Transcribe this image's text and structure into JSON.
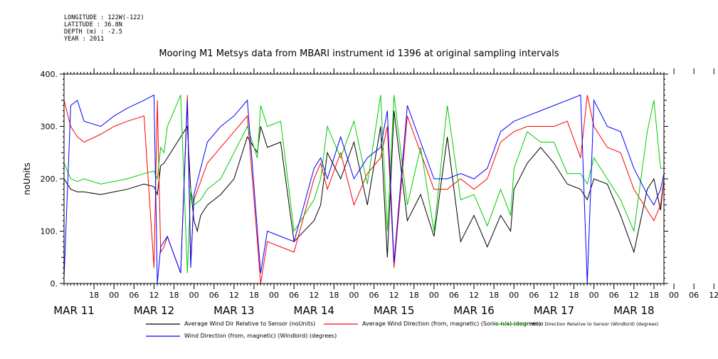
{
  "meta": {
    "longitude": "LONGITUDE : 122W(-122)",
    "latitude": "LATITUDE : 36.8N",
    "depth": "DEPTH (m) : -2.5",
    "year": "YEAR : 2011"
  },
  "chart_data": {
    "type": "line",
    "title": "Mooring M1 Metsys data from MBARI instrument id 1396 at original sampling intervals",
    "ylabel": "noUnits",
    "xlabel": "",
    "ylim": [
      0,
      400
    ],
    "yticks": [
      0,
      100,
      200,
      300,
      400
    ],
    "xlim_hours_from_mar11_00": [
      9,
      189
    ],
    "hour_tick_labels": [
      "18",
      "00",
      "06",
      "12",
      "18",
      "00",
      "06",
      "12",
      "18",
      "00",
      "06",
      "12",
      "18",
      "00",
      "06",
      "12",
      "18",
      "00",
      "06",
      "12",
      "18",
      "00",
      "06",
      "12",
      "18",
      "00",
      "06",
      "12",
      "18",
      "00",
      "06",
      "12"
    ],
    "day_labels": [
      "MAR 11",
      "MAR 12",
      "MAR 13",
      "MAR 14",
      "MAR 15",
      "MAR 16",
      "MAR 17",
      "MAR 18"
    ],
    "grid": false,
    "legend_position": "bottom",
    "series": [
      {
        "name": "Average Wind Dir Relative to Sensor (noUnits)",
        "color": "#000000",
        "x": [
          9,
          11,
          13,
          15,
          20,
          24,
          28,
          33,
          36,
          37,
          38,
          39,
          40,
          44,
          46,
          47,
          48,
          49,
          50,
          52,
          56,
          60,
          64,
          67,
          68,
          70,
          74,
          78,
          84,
          86,
          88,
          92,
          96,
          100,
          104,
          106,
          108,
          112,
          116,
          120,
          124,
          128,
          132,
          136,
          140,
          143,
          144,
          148,
          152,
          156,
          160,
          164,
          166,
          168,
          172,
          176,
          180,
          184,
          186,
          188,
          189
        ],
        "y": [
          200,
          180,
          175,
          175,
          170,
          175,
          180,
          190,
          185,
          170,
          225,
          230,
          240,
          280,
          300,
          180,
          120,
          100,
          130,
          150,
          170,
          200,
          280,
          250,
          300,
          260,
          270,
          80,
          120,
          150,
          250,
          200,
          270,
          150,
          300,
          50,
          330,
          120,
          170,
          90,
          280,
          80,
          130,
          70,
          130,
          100,
          180,
          230,
          260,
          230,
          190,
          180,
          160,
          200,
          190,
          130,
          60,
          180,
          200,
          140,
          200
        ]
      },
      {
        "name": "Average Wind Direction (from, magnetic) (Sonic-n/a) (degrees)",
        "color": "#ff0000",
        "x": [
          9,
          11,
          13,
          15,
          20,
          24,
          28,
          33,
          36,
          37,
          38,
          39,
          40,
          44,
          46,
          47,
          48,
          52,
          56,
          60,
          64,
          68,
          70,
          74,
          78,
          84,
          86,
          88,
          92,
          96,
          100,
          104,
          106,
          108,
          112,
          116,
          120,
          124,
          128,
          132,
          136,
          140,
          144,
          148,
          152,
          156,
          160,
          164,
          166,
          168,
          172,
          176,
          180,
          184,
          186,
          188,
          189
        ],
        "y": [
          350,
          300,
          280,
          270,
          285,
          300,
          310,
          320,
          30,
          350,
          60,
          70,
          90,
          20,
          360,
          40,
          160,
          230,
          260,
          290,
          320,
          0,
          80,
          70,
          60,
          200,
          230,
          180,
          250,
          150,
          210,
          240,
          300,
          30,
          320,
          250,
          180,
          180,
          200,
          180,
          200,
          270,
          290,
          300,
          300,
          300,
          310,
          240,
          360,
          300,
          260,
          250,
          180,
          140,
          120,
          150,
          200
        ]
      },
      {
        "name": "Wind Direction Relative to Sensor (Windbird) (degrees)",
        "color": "#00cc00",
        "x": [
          9,
          11,
          13,
          15,
          20,
          24,
          28,
          33,
          36,
          37,
          38,
          39,
          40,
          44,
          46,
          47,
          48,
          50,
          52,
          56,
          60,
          64,
          67,
          68,
          70,
          74,
          78,
          84,
          86,
          88,
          92,
          96,
          100,
          104,
          106,
          108,
          112,
          116,
          120,
          124,
          128,
          132,
          136,
          140,
          143,
          144,
          148,
          152,
          156,
          160,
          164,
          166,
          168,
          172,
          176,
          180,
          184,
          186,
          188,
          189
        ],
        "y": [
          230,
          200,
          195,
          200,
          190,
          195,
          200,
          210,
          215,
          200,
          260,
          250,
          300,
          360,
          20,
          180,
          150,
          160,
          180,
          200,
          250,
          300,
          240,
          340,
          300,
          310,
          100,
          160,
          200,
          300,
          240,
          310,
          190,
          360,
          100,
          360,
          150,
          260,
          100,
          340,
          160,
          170,
          110,
          180,
          130,
          220,
          290,
          270,
          270,
          210,
          210,
          190,
          240,
          200,
          160,
          100,
          290,
          350,
          220,
          220
        ]
      },
      {
        "name": "Wind Direction (from, magnetic) (Windbird) (degrees)",
        "color": "#0000ff",
        "x": [
          9,
          11,
          13,
          15,
          20,
          24,
          28,
          33,
          36,
          37,
          38,
          39,
          40,
          44,
          46,
          47,
          48,
          52,
          56,
          60,
          64,
          68,
          70,
          74,
          78,
          84,
          86,
          88,
          92,
          96,
          100,
          104,
          106,
          108,
          112,
          116,
          120,
          124,
          128,
          132,
          136,
          140,
          144,
          148,
          152,
          156,
          160,
          164,
          166,
          168,
          172,
          176,
          180,
          184,
          186,
          188,
          189
        ],
        "y": [
          10,
          340,
          350,
          310,
          300,
          320,
          335,
          350,
          360,
          0,
          70,
          80,
          90,
          20,
          350,
          30,
          170,
          270,
          300,
          320,
          350,
          20,
          100,
          90,
          80,
          220,
          240,
          200,
          280,
          200,
          240,
          260,
          330,
          40,
          340,
          270,
          200,
          200,
          210,
          200,
          220,
          290,
          310,
          320,
          330,
          340,
          350,
          360,
          0,
          350,
          300,
          290,
          220,
          170,
          150,
          180,
          210
        ]
      }
    ]
  }
}
